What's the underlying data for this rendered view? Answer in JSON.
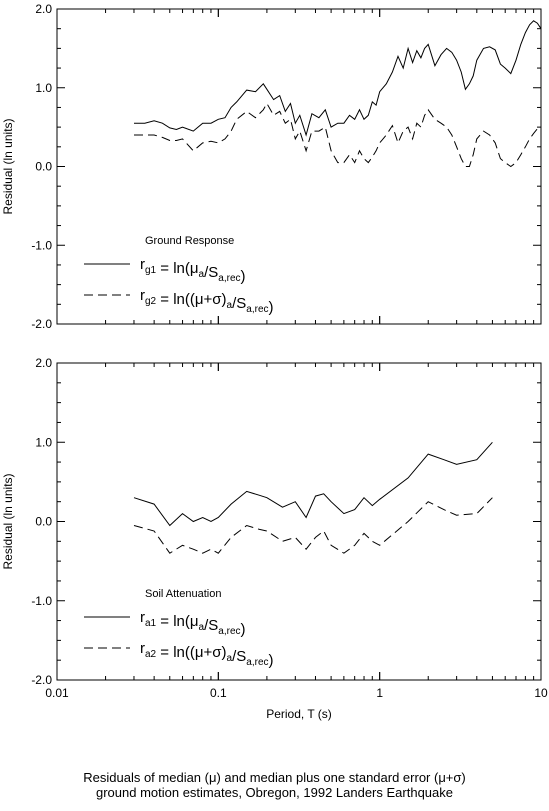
{
  "chart_data": [
    {
      "type": "line",
      "title": "",
      "xlabel": "",
      "ylabel": "Residual (ln units)",
      "x_scale": "log",
      "xlim": [
        0.01,
        10
      ],
      "ylim": [
        -2.0,
        2.0
      ],
      "y_ticks": [
        "2.0",
        "1.0",
        "0.0",
        "-1.0",
        "-2.0"
      ],
      "legend_title": "Ground Response",
      "legend_position": "lower-left",
      "series": [
        {
          "name": "r_g1 = ln(μ_a/S_a,rec)",
          "style": "solid",
          "x": [
            0.03,
            0.035,
            0.04,
            0.045,
            0.05,
            0.055,
            0.06,
            0.07,
            0.08,
            0.09,
            0.1,
            0.11,
            0.12,
            0.13,
            0.15,
            0.17,
            0.19,
            0.2,
            0.22,
            0.24,
            0.26,
            0.28,
            0.3,
            0.32,
            0.35,
            0.38,
            0.42,
            0.46,
            0.5,
            0.55,
            0.6,
            0.65,
            0.7,
            0.75,
            0.8,
            0.85,
            0.9,
            0.95,
            1.0,
            1.1,
            1.2,
            1.3,
            1.4,
            1.5,
            1.6,
            1.7,
            1.8,
            1.9,
            2.0,
            2.2,
            2.4,
            2.6,
            2.8,
            3.0,
            3.2,
            3.4,
            3.6,
            3.8,
            4.0,
            4.4,
            4.8,
            5.2,
            5.6,
            6.0,
            6.5,
            7.0,
            7.5,
            8.0,
            8.5,
            9.0,
            9.5,
            10.0
          ],
          "y": [
            0.55,
            0.55,
            0.58,
            0.55,
            0.49,
            0.47,
            0.5,
            0.45,
            0.55,
            0.55,
            0.6,
            0.62,
            0.75,
            0.82,
            0.97,
            0.95,
            1.05,
            0.98,
            0.85,
            0.9,
            0.7,
            0.8,
            0.55,
            0.65,
            0.4,
            0.67,
            0.62,
            0.72,
            0.5,
            0.55,
            0.55,
            0.65,
            0.6,
            0.72,
            0.6,
            0.65,
            0.82,
            0.78,
            0.95,
            1.05,
            1.2,
            1.4,
            1.25,
            1.5,
            1.32,
            1.47,
            1.38,
            1.5,
            1.55,
            1.28,
            1.42,
            1.5,
            1.45,
            1.35,
            1.2,
            0.98,
            1.05,
            1.15,
            1.35,
            1.5,
            1.52,
            1.48,
            1.3,
            1.25,
            1.18,
            1.35,
            1.55,
            1.7,
            1.8,
            1.85,
            1.82,
            1.75
          ]
        },
        {
          "name": "r_g2 = ln((μ+σ)_a/S_a,rec)",
          "style": "dashed",
          "x": [
            0.03,
            0.035,
            0.04,
            0.045,
            0.05,
            0.055,
            0.06,
            0.07,
            0.08,
            0.09,
            0.1,
            0.11,
            0.12,
            0.13,
            0.15,
            0.17,
            0.19,
            0.2,
            0.22,
            0.24,
            0.26,
            0.28,
            0.3,
            0.32,
            0.35,
            0.38,
            0.42,
            0.46,
            0.5,
            0.55,
            0.6,
            0.65,
            0.7,
            0.75,
            0.8,
            0.85,
            0.9,
            0.95,
            1.0,
            1.1,
            1.2,
            1.3,
            1.4,
            1.5,
            1.6,
            1.7,
            1.8,
            1.9,
            2.0,
            2.2,
            2.4,
            2.6,
            2.8,
            3.0,
            3.2,
            3.4,
            3.6,
            3.8,
            4.0,
            4.4,
            4.8,
            5.2,
            5.6,
            6.0,
            6.5,
            7.0,
            7.5,
            8.0,
            8.5,
            9.0,
            9.5,
            10.0
          ],
          "y": [
            0.4,
            0.4,
            0.4,
            0.37,
            0.33,
            0.33,
            0.35,
            0.2,
            0.3,
            0.32,
            0.3,
            0.35,
            0.45,
            0.6,
            0.7,
            0.62,
            0.72,
            0.8,
            0.65,
            0.7,
            0.55,
            0.6,
            0.35,
            0.45,
            0.2,
            0.45,
            0.45,
            0.5,
            0.2,
            0.05,
            0.05,
            0.15,
            0.05,
            0.2,
            0.1,
            0.05,
            0.12,
            0.2,
            0.3,
            0.4,
            0.52,
            0.3,
            0.45,
            0.5,
            0.35,
            0.55,
            0.5,
            0.65,
            0.72,
            0.6,
            0.55,
            0.5,
            0.4,
            0.25,
            0.1,
            0.0,
            0.0,
            0.15,
            0.35,
            0.45,
            0.4,
            0.3,
            0.1,
            0.05,
            0.0,
            0.05,
            0.15,
            0.25,
            0.35,
            0.42,
            0.48,
            0.5
          ]
        }
      ]
    },
    {
      "type": "line",
      "title": "",
      "xlabel": "Period, T (s)",
      "ylabel": "Residual (ln units)",
      "x_scale": "log",
      "xlim": [
        0.01,
        10
      ],
      "ylim": [
        -2.0,
        2.0
      ],
      "x_ticks": [
        "0.01",
        "0.1",
        "1",
        "10"
      ],
      "y_ticks": [
        "2.0",
        "1.0",
        "0.0",
        "-1.0",
        "-2.0"
      ],
      "legend_title": "Soil Attenuation",
      "legend_position": "lower-left",
      "series": [
        {
          "name": "r_a1 = ln(μ_a/S_a,rec)",
          "style": "solid",
          "x": [
            0.03,
            0.04,
            0.05,
            0.06,
            0.07,
            0.08,
            0.09,
            0.1,
            0.12,
            0.15,
            0.18,
            0.2,
            0.25,
            0.3,
            0.35,
            0.4,
            0.45,
            0.5,
            0.6,
            0.7,
            0.8,
            0.9,
            1.0,
            1.5,
            2.0,
            2.5,
            3.0,
            4.0,
            5.0
          ],
          "y": [
            0.3,
            0.22,
            -0.05,
            0.1,
            0.0,
            0.05,
            0.0,
            0.05,
            0.22,
            0.38,
            0.33,
            0.3,
            0.18,
            0.25,
            0.05,
            0.32,
            0.35,
            0.25,
            0.1,
            0.15,
            0.3,
            0.2,
            0.28,
            0.55,
            0.85,
            0.78,
            0.72,
            0.78,
            1.0
          ]
        },
        {
          "name": "r_a2 = ln((μ+σ)_a/S_a,rec)",
          "style": "dashed",
          "x": [
            0.03,
            0.04,
            0.05,
            0.06,
            0.07,
            0.08,
            0.09,
            0.1,
            0.12,
            0.15,
            0.18,
            0.2,
            0.25,
            0.3,
            0.35,
            0.4,
            0.45,
            0.5,
            0.6,
            0.7,
            0.8,
            0.9,
            1.0,
            1.5,
            2.0,
            2.5,
            3.0,
            4.0,
            5.0
          ],
          "y": [
            -0.05,
            -0.12,
            -0.4,
            -0.3,
            -0.35,
            -0.4,
            -0.35,
            -0.4,
            -0.2,
            -0.05,
            -0.1,
            -0.12,
            -0.25,
            -0.2,
            -0.35,
            -0.2,
            -0.12,
            -0.3,
            -0.4,
            -0.3,
            -0.15,
            -0.25,
            -0.3,
            0.0,
            0.25,
            0.15,
            0.08,
            0.1,
            0.3
          ]
        }
      ]
    }
  ],
  "legends": {
    "top": {
      "title": "Ground Response",
      "items": [
        {
          "sym": "r",
          "sub": "g1",
          "eq": " = ln(μ",
          "eqsub": "a",
          "tail": "/S",
          "tailsub": "a,rec",
          "close": ")"
        },
        {
          "sym": "r",
          "sub": "g2",
          "eq": " = ln((μ+σ)",
          "eqsub": "a",
          "tail": "/S",
          "tailsub": "a,rec",
          "close": ")"
        }
      ]
    },
    "bottom": {
      "title": "Soil Attenuation",
      "items": [
        {
          "sym": "r",
          "sub": "a1",
          "eq": " = ln(μ",
          "eqsub": "a",
          "tail": "/S",
          "tailsub": "a,rec",
          "close": ")"
        },
        {
          "sym": "r",
          "sub": "a2",
          "eq": " = ln((μ+σ)",
          "eqsub": "a",
          "tail": "/S",
          "tailsub": "a,rec",
          "close": ")"
        }
      ]
    }
  },
  "caption": {
    "line1": "Residuals of median (μ) and median plus one standard error (μ+σ)",
    "line2": "ground motion estimates, Obregon, 1992 Landers Earthquake"
  }
}
